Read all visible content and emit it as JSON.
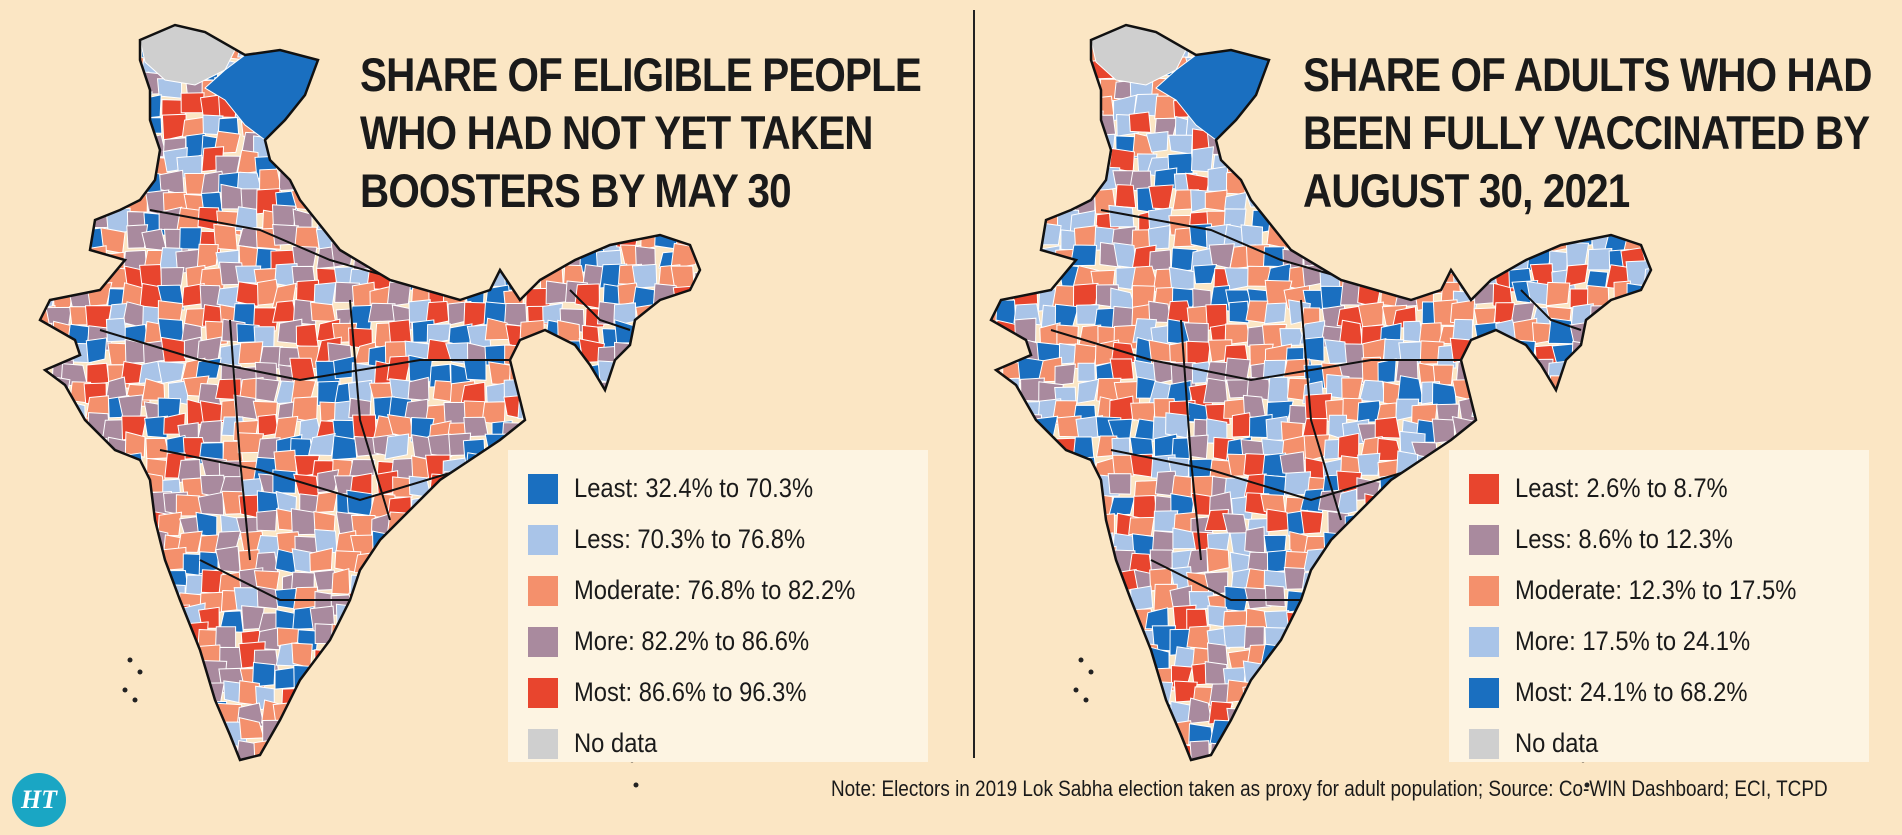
{
  "colors": {
    "background": "#fbe6c4",
    "legend_bg": "#fdf4e2",
    "dark_blue": "#1a6fc0",
    "light_blue": "#a9c4e8",
    "salmon": "#f4906c",
    "mauve": "#a98a9e",
    "red": "#e8452e",
    "grey": "#cfcfcf"
  },
  "left_map": {
    "title_lines": [
      "SHARE OF ELIGIBLE PEOPLE",
      "WHO HAD NOT YET TAKEN",
      "BOOSTERS BY MAY 30"
    ],
    "legend": [
      {
        "label": "Least: 32.4% to 70.3%",
        "color": "#1a6fc0"
      },
      {
        "label": "Less: 70.3% to 76.8%",
        "color": "#a9c4e8"
      },
      {
        "label": "Moderate: 76.8% to 82.2%",
        "color": "#f4906c"
      },
      {
        "label": "More: 82.2% to 86.6%",
        "color": "#a98a9e"
      },
      {
        "label": "Most: 86.6% to 96.3%",
        "color": "#e8452e"
      },
      {
        "label": "No data",
        "color": "#cfcfcf"
      }
    ]
  },
  "right_map": {
    "title_lines": [
      "SHARE OF ADULTS WHO HAD",
      "BEEN FULLY VACCINATED BY",
      "AUGUST 30, 2021"
    ],
    "legend": [
      {
        "label": "Least: 2.6% to 8.7%",
        "color": "#e8452e"
      },
      {
        "label": "Less: 8.6% to 12.3%",
        "color": "#a98a9e"
      },
      {
        "label": "Moderate: 12.3% to 17.5%",
        "color": "#f4906c"
      },
      {
        "label": "More: 17.5% to 24.1%",
        "color": "#a9c4e8"
      },
      {
        "label": "Most: 24.1% to 68.2%",
        "color": "#1a6fc0"
      },
      {
        "label": "No data",
        "color": "#cfcfcf"
      }
    ]
  },
  "logo": {
    "text": "HT"
  },
  "note": "Note: Electors in 2019 Lok Sabha election taken as proxy for adult population; Source: Co-WIN Dashboard; ECI, TCPD"
}
